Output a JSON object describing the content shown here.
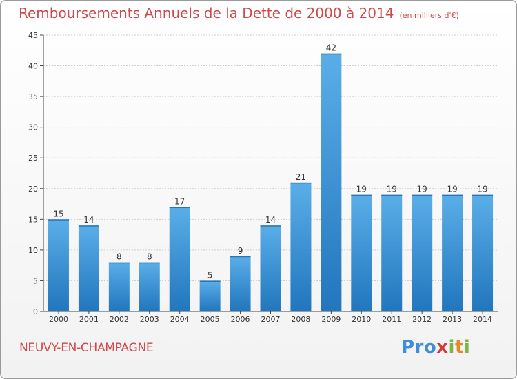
{
  "title": {
    "main": "Remboursements Annuels de la Dette de 2000 à 2014",
    "unit": "(en milliers d'€)"
  },
  "place": "NEUVY-EN-CHAMPAGNE",
  "logo": {
    "p1": "Pro",
    "p2": "x",
    "p3": "i",
    "p4": "t",
    "p5": "i"
  },
  "colors": {
    "title": "#d0494a",
    "bar_top": "#5aaee8",
    "bar_bottom": "#2176bd",
    "grid": "#cfcfcf"
  },
  "chart_data": {
    "type": "bar",
    "categories": [
      "2000",
      "2001",
      "2002",
      "2003",
      "2004",
      "2005",
      "2006",
      "2007",
      "2008",
      "2009",
      "2010",
      "2011",
      "2012",
      "2013",
      "2014"
    ],
    "values": [
      15,
      14,
      8,
      8,
      17,
      5,
      9,
      14,
      21,
      42,
      19,
      19,
      19,
      19,
      19
    ],
    "value_labels": [
      "15",
      "14",
      "8",
      "8",
      "17",
      "5",
      "9",
      "14",
      "21",
      "42",
      "19",
      "19",
      "19",
      "19",
      "19"
    ],
    "ylim": [
      0,
      45
    ],
    "yticks": [
      0,
      5,
      10,
      15,
      20,
      25,
      30,
      35,
      40,
      45
    ],
    "ytick_labels": [
      "0",
      "5",
      "10",
      "15",
      "20",
      "25",
      "30",
      "35",
      "40",
      "45"
    ],
    "grid": true,
    "xlabel": "",
    "ylabel": ""
  }
}
